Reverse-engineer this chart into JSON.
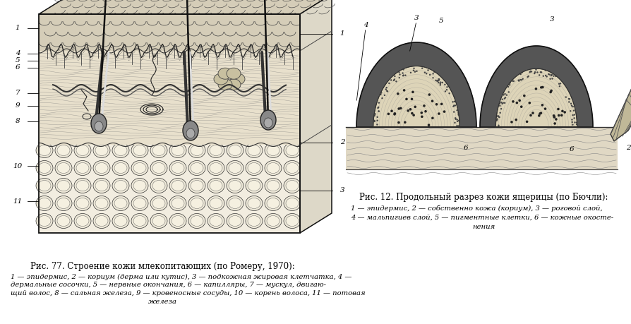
{
  "bg_color": "#ffffff",
  "fig_width": 8.94,
  "fig_height": 4.59,
  "dpi": 100,
  "title1": "Рис. 77. Строение кожи млекопитающих (по Ромеру, 1970):",
  "caption1_line1": "1 — эпидермис, 2 — кориум (дерма или кутис), 3 — подкожная жировая клетчатка, 4 —",
  "caption1_line2": "дермальные сосочки, 5 — нервные окончания, 6 — капилляры, 7 — мускул, двигаю-",
  "caption1_line3": "щий волос, 8 — сальная железа, 9 — кровеносные сосуды, 10 — корень волоса, 11 — потовая",
  "caption1_line4": "железа",
  "title2": "Рис. 12. Продольный разрез кожи ящерицы (по Бючли):",
  "caption2_line1": "1 — эпидермис, 2 — собственно кожа (кориум), 3 — роговой слой,",
  "caption2_line2": "4 — мальпигиев слой, 5 — пигментные клетки, 6 — кожные окосте-",
  "caption2_line3": "нения"
}
